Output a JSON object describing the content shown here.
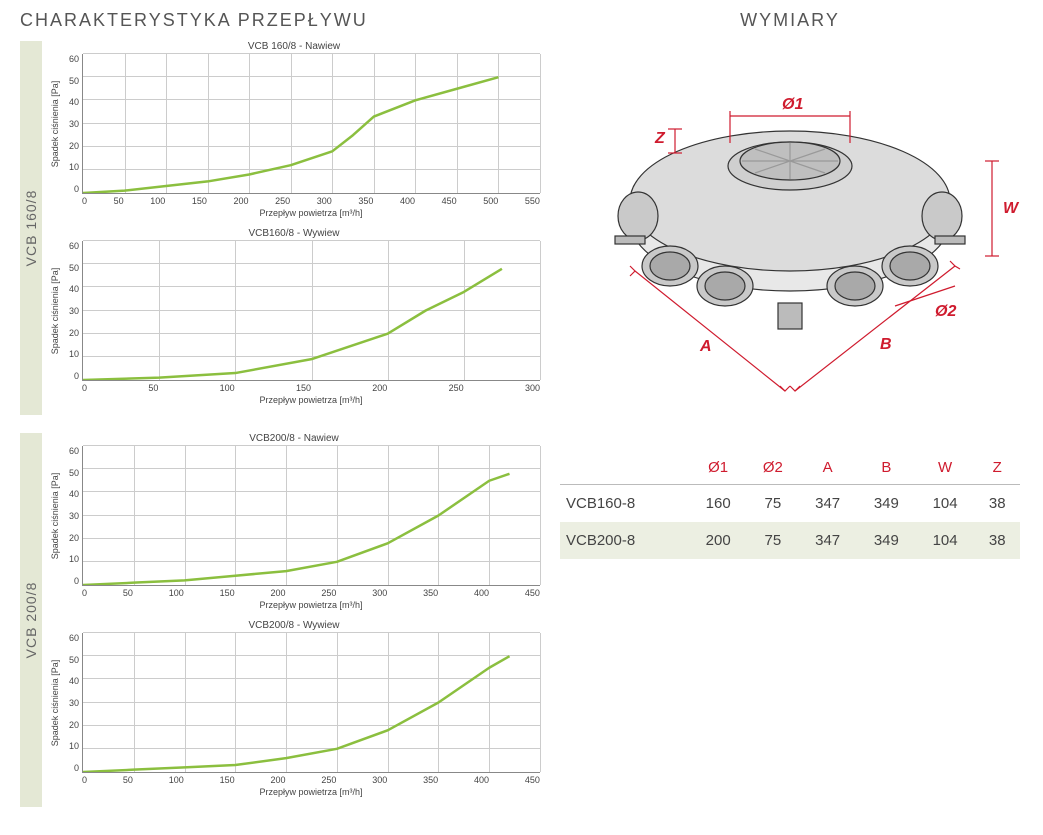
{
  "titles": {
    "left": "CHARAKTERYSTYKA PRZEPŁYWU",
    "right": "WYMIARY"
  },
  "chart_common": {
    "ylabel": "Spadek ciśnienia [Pa]",
    "xlabel": "Przepływ powietrza [m³/h]",
    "line_color": "#8bbf3f",
    "line_width": 2.5,
    "grid_color": "#cccccc",
    "axis_color": "#888888",
    "y_ticks": [
      0,
      10,
      20,
      30,
      40,
      50,
      60
    ],
    "ylim": [
      0,
      60
    ]
  },
  "groups": [
    {
      "tab": "VCB 160/8",
      "charts": [
        {
          "title": "VCB 160/8 - Nawiew",
          "x_ticks": [
            0,
            50,
            100,
            150,
            200,
            250,
            300,
            350,
            400,
            450,
            500,
            550
          ],
          "xlim": [
            0,
            550
          ],
          "points": [
            [
              0,
              0
            ],
            [
              50,
              1
            ],
            [
              100,
              3
            ],
            [
              150,
              5
            ],
            [
              200,
              8
            ],
            [
              250,
              12
            ],
            [
              300,
              18
            ],
            [
              325,
              25
            ],
            [
              350,
              33
            ],
            [
              400,
              40
            ],
            [
              450,
              45
            ],
            [
              500,
              50
            ]
          ]
        },
        {
          "title": "VCB160/8 - Wywiew",
          "x_ticks": [
            0,
            50,
            100,
            150,
            200,
            250,
            300
          ],
          "xlim": [
            0,
            300
          ],
          "points": [
            [
              0,
              0
            ],
            [
              50,
              1
            ],
            [
              100,
              3
            ],
            [
              150,
              9
            ],
            [
              200,
              20
            ],
            [
              225,
              30
            ],
            [
              250,
              38
            ],
            [
              275,
              48
            ]
          ]
        }
      ]
    },
    {
      "tab": "VCB 200/8",
      "charts": [
        {
          "title": "VCB200/8 - Nawiew",
          "x_ticks": [
            0,
            50,
            100,
            150,
            200,
            250,
            300,
            350,
            400,
            450
          ],
          "xlim": [
            0,
            450
          ],
          "points": [
            [
              0,
              0
            ],
            [
              50,
              1
            ],
            [
              100,
              2
            ],
            [
              150,
              4
            ],
            [
              200,
              6
            ],
            [
              250,
              10
            ],
            [
              300,
              18
            ],
            [
              350,
              30
            ],
            [
              400,
              45
            ],
            [
              420,
              48
            ]
          ]
        },
        {
          "title": "VCB200/8 - Wywiew",
          "x_ticks": [
            0,
            50,
            100,
            150,
            200,
            250,
            300,
            350,
            400,
            450
          ],
          "xlim": [
            0,
            450
          ],
          "points": [
            [
              0,
              0
            ],
            [
              50,
              1
            ],
            [
              100,
              2
            ],
            [
              150,
              3
            ],
            [
              200,
              6
            ],
            [
              250,
              10
            ],
            [
              300,
              18
            ],
            [
              350,
              30
            ],
            [
              400,
              45
            ],
            [
              420,
              50
            ]
          ]
        }
      ]
    }
  ],
  "diagram": {
    "labels": [
      "Ø1",
      "Ø2",
      "A",
      "B",
      "W",
      "Z"
    ],
    "label_color": "#cf1b2e",
    "outline_color": "#333333"
  },
  "dim_table": {
    "headers": [
      "",
      "Ø1",
      "Ø2",
      "A",
      "B",
      "W",
      "Z"
    ],
    "rows": [
      [
        "VCB160-8",
        "160",
        "75",
        "347",
        "349",
        "104",
        "38"
      ],
      [
        "VCB200-8",
        "200",
        "75",
        "347",
        "349",
        "104",
        "38"
      ]
    ]
  }
}
